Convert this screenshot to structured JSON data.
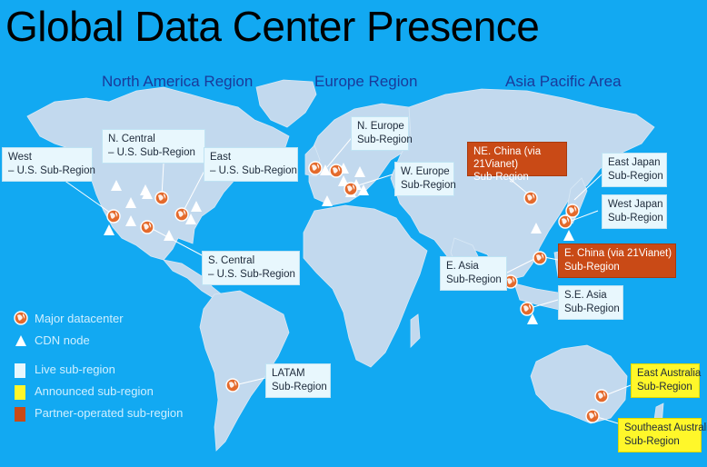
{
  "title": "Global Data Center Presence",
  "regions": {
    "north_america": "North America Region",
    "europe": "Europe Region",
    "asia_pacific": "Asia Pacific Area"
  },
  "subregions": {
    "west": {
      "line1": "West",
      "line2": "– U.S. Sub-Region",
      "status": "live"
    },
    "n_central": {
      "line1": "N. Central",
      "line2": "– U.S. Sub-Region",
      "status": "live"
    },
    "east": {
      "line1": "East",
      "line2": "– U.S. Sub-Region",
      "status": "live"
    },
    "s_central": {
      "line1": "S. Central",
      "line2": "– U.S. Sub-Region",
      "status": "live"
    },
    "latam": {
      "line1": "LATAM",
      "line2": "Sub-Region",
      "status": "live"
    },
    "n_europe": {
      "line1": "N. Europe",
      "line2": "Sub-Region",
      "status": "live"
    },
    "w_europe": {
      "line1": "W. Europe",
      "line2": "Sub-Region",
      "status": "live"
    },
    "ne_china": {
      "line1": "NE. China (via 21Vianet)",
      "line2": "Sub-Region",
      "status": "partner"
    },
    "east_japan": {
      "line1": "East Japan",
      "line2": "Sub-Region",
      "status": "live"
    },
    "west_japan": {
      "line1": "West Japan",
      "line2": "Sub-Region",
      "status": "live"
    },
    "e_china": {
      "line1": "E. China (via 21Vianet)",
      "line2": "Sub-Region",
      "status": "partner"
    },
    "e_asia": {
      "line1": "E. Asia",
      "line2": "Sub-Region",
      "status": "live"
    },
    "se_asia": {
      "line1": "S.E. Asia",
      "line2": "Sub-Region",
      "status": "live"
    },
    "east_australia": {
      "line1": "East Australia",
      "line2": "Sub-Region",
      "status": "announced"
    },
    "southeast_australia": {
      "line1": "Southeast Australia",
      "line2": "Sub-Region",
      "status": "announced"
    }
  },
  "legend": {
    "major_datacenter": "Major datacenter",
    "cdn_node": "CDN node",
    "live": "Live sub-region",
    "announced": "Announced sub-region",
    "partner": "Partner-operated sub-region"
  },
  "colors": {
    "ocean": "#12a9f2",
    "land": "#c2d9ee",
    "live": "#e8f7fd",
    "announced": "#fff72a",
    "partner": "#c94a16",
    "datacenter": "#e46a2c"
  }
}
